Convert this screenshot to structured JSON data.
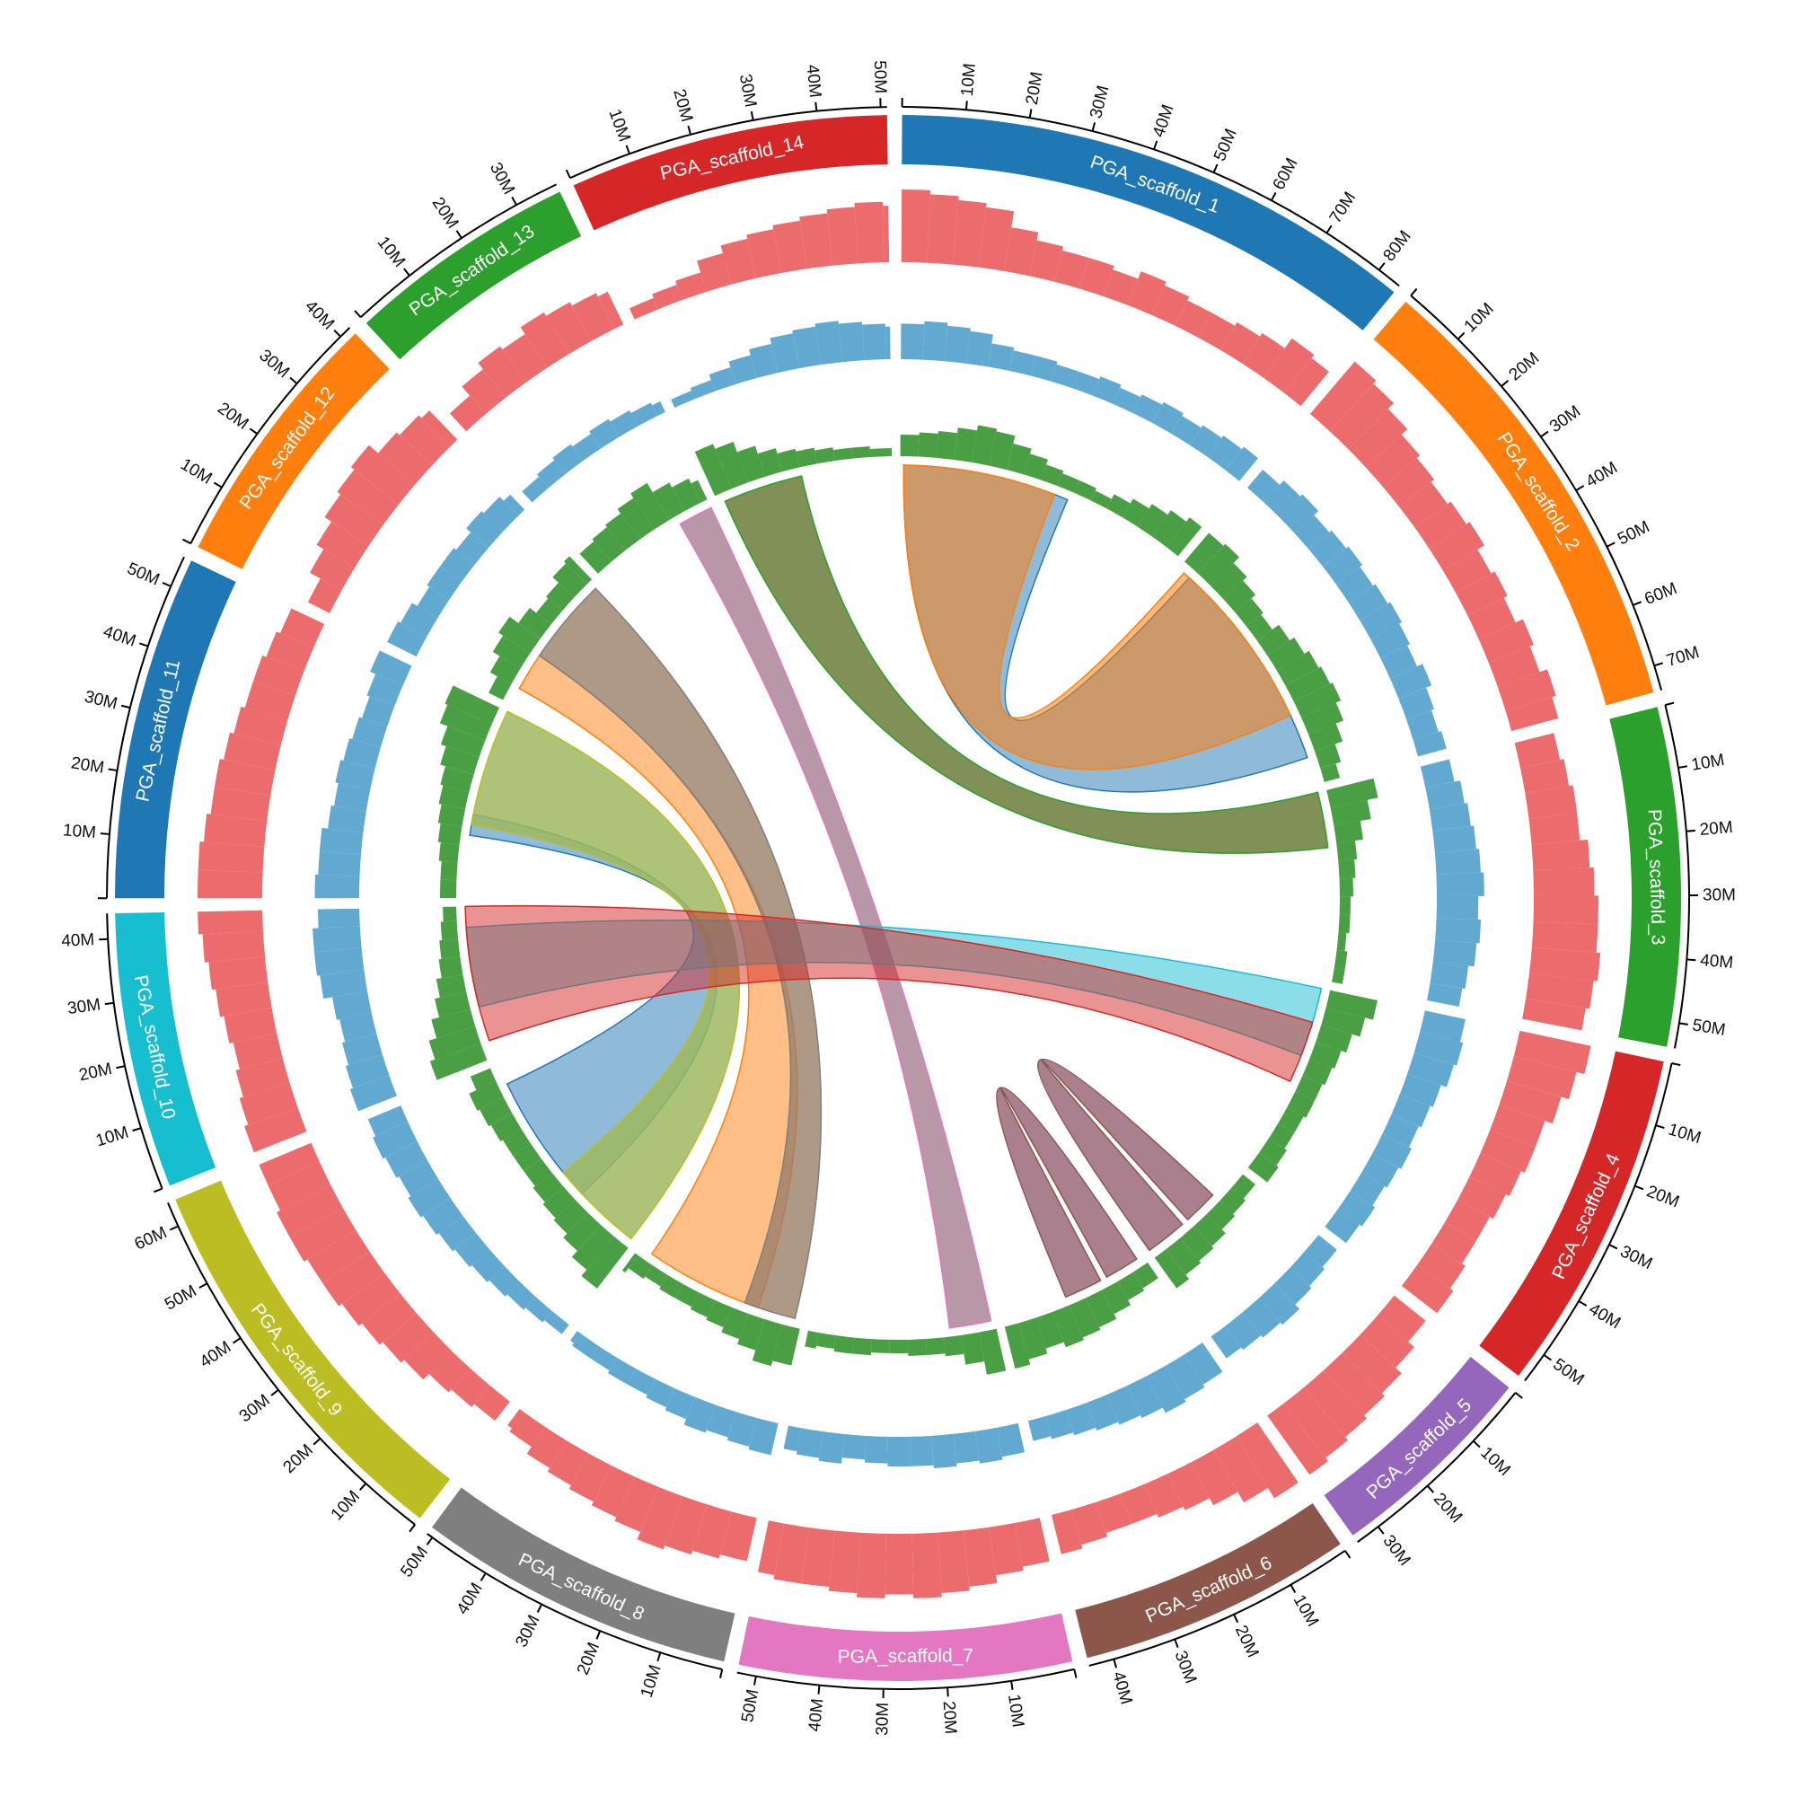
{
  "chart_data": {
    "type": "circos",
    "title": "",
    "unit": "M",
    "tick_step": 10,
    "tick_labels": [
      "10M",
      "20M",
      "30M",
      "40M",
      "50M",
      "60M",
      "70M",
      "80M"
    ],
    "scaffolds": [
      {
        "name": "PGA_scaffold_1",
        "length": 84,
        "color": "#1f77b4"
      },
      {
        "name": "PGA_scaffold_2",
        "length": 74,
        "color": "#ff7f0e"
      },
      {
        "name": "PGA_scaffold_3",
        "length": 54,
        "color": "#2ca02c"
      },
      {
        "name": "PGA_scaffold_4",
        "length": 55,
        "color": "#d62728"
      },
      {
        "name": "PGA_scaffold_5",
        "length": 34,
        "color": "#9467bd"
      },
      {
        "name": "PGA_scaffold_6",
        "length": 44,
        "color": "#8c564b"
      },
      {
        "name": "PGA_scaffold_7",
        "length": 53,
        "color": "#e377c2"
      },
      {
        "name": "PGA_scaffold_8",
        "length": 51,
        "color": "#7f7f7f"
      },
      {
        "name": "PGA_scaffold_9",
        "length": 64,
        "color": "#bcbd22"
      },
      {
        "name": "PGA_scaffold_10",
        "length": 44,
        "color": "#17becf"
      },
      {
        "name": "PGA_scaffold_11",
        "length": 55,
        "color": "#1f77b4"
      },
      {
        "name": "PGA_scaffold_12",
        "length": 42,
        "color": "#ff7f0e"
      },
      {
        "name": "PGA_scaffold_13",
        "length": 37,
        "color": "#2ca02c"
      },
      {
        "name": "PGA_scaffold_14",
        "length": 51,
        "color": "#d62728"
      }
    ],
    "tracks": [
      {
        "color": "#ec6b6d",
        "bin_size": 5,
        "values": [
          [
            0.9,
            0.85,
            0.8,
            0.75,
            0.55,
            0.45,
            0.4,
            0.4,
            0.35,
            0.45,
            0.4,
            0.35,
            0.35,
            0.4,
            0.45,
            0.6,
            0.55
          ],
          [
            0.85,
            0.8,
            0.7,
            0.6,
            0.55,
            0.5,
            0.55,
            0.6,
            0.5,
            0.55,
            0.5,
            0.6,
            0.55,
            0.65,
            0.6
          ],
          [
            0.5,
            0.55,
            0.6,
            0.6,
            0.7,
            0.75,
            0.8,
            0.8,
            0.85,
            0.8,
            0.75
          ],
          [
            0.9,
            0.8,
            0.7,
            0.6,
            0.6,
            0.55,
            0.5,
            0.45,
            0.45,
            0.5,
            0.55
          ],
          [
            0.5,
            0.6,
            0.7,
            0.75,
            0.8,
            0.85,
            0.9
          ],
          [
            0.9,
            0.75,
            0.6,
            0.5,
            0.45,
            0.4,
            0.4,
            0.45,
            0.5
          ],
          [
            0.55,
            0.6,
            0.7,
            0.75,
            0.8,
            0.75,
            0.8,
            0.75,
            0.7,
            0.7,
            0.65
          ],
          [
            0.55,
            0.6,
            0.65,
            0.7,
            0.6,
            0.55,
            0.5,
            0.45,
            0.4,
            0.3,
            0.25
          ],
          [
            0.3,
            0.35,
            0.4,
            0.5,
            0.55,
            0.6,
            0.65,
            0.7,
            0.7,
            0.75,
            0.75,
            0.7,
            0.7
          ],
          [
            0.7,
            0.65,
            0.6,
            0.55,
            0.6,
            0.65,
            0.7,
            0.75,
            0.8
          ],
          [
            0.8,
            0.8,
            0.75,
            0.7,
            0.7,
            0.65,
            0.6,
            0.55,
            0.55,
            0.5,
            0.45
          ],
          [
            0.3,
            0.45,
            0.55,
            0.65,
            0.7,
            0.75,
            0.6,
            0.55,
            0.5
          ],
          [
            0.3,
            0.45,
            0.55,
            0.5,
            0.6,
            0.55,
            0.5,
            0.45
          ],
          [
            0.15,
            0.2,
            0.25,
            0.4,
            0.5,
            0.55,
            0.6,
            0.65,
            0.7,
            0.75,
            0.7
          ]
        ]
      },
      {
        "color": "#62a9d1",
        "bin_size": 5,
        "values": [
          [
            0.6,
            0.65,
            0.6,
            0.55,
            0.4,
            0.35,
            0.35,
            0.3,
            0.3,
            0.35,
            0.3,
            0.35,
            0.4,
            0.35,
            0.4,
            0.45,
            0.5
          ],
          [
            0.4,
            0.5,
            0.55,
            0.45,
            0.5,
            0.55,
            0.5,
            0.55,
            0.6,
            0.55,
            0.5,
            0.6,
            0.5,
            0.45,
            0.5
          ],
          [
            0.5,
            0.6,
            0.65,
            0.7,
            0.75,
            0.8,
            0.7,
            0.75,
            0.7,
            0.6,
            0.55
          ],
          [
            0.7,
            0.75,
            0.7,
            0.6,
            0.55,
            0.5,
            0.55,
            0.5,
            0.45,
            0.5,
            0.45
          ],
          [
            0.4,
            0.45,
            0.5,
            0.6,
            0.55,
            0.5,
            0.45
          ],
          [
            0.6,
            0.65,
            0.7,
            0.6,
            0.55,
            0.5,
            0.45,
            0.4,
            0.35
          ],
          [
            0.5,
            0.55,
            0.5,
            0.55,
            0.5,
            0.5,
            0.45,
            0.4,
            0.5,
            0.45,
            0.4
          ],
          [
            0.55,
            0.5,
            0.45,
            0.5,
            0.4,
            0.35,
            0.3,
            0.3,
            0.25,
            0.25,
            0.2
          ],
          [
            0.2,
            0.25,
            0.3,
            0.35,
            0.4,
            0.45,
            0.5,
            0.55,
            0.6,
            0.55,
            0.6,
            0.65,
            0.6
          ],
          [
            0.7,
            0.65,
            0.6,
            0.55,
            0.6,
            0.75,
            0.8,
            0.8,
            0.7
          ],
          [
            0.75,
            0.7,
            0.7,
            0.6,
            0.55,
            0.6,
            0.55,
            0.5,
            0.45,
            0.5,
            0.6
          ],
          [
            0.55,
            0.5,
            0.4,
            0.45,
            0.45,
            0.4,
            0.5,
            0.45,
            0.35
          ],
          [
            0.25,
            0.3,
            0.35,
            0.3,
            0.35,
            0.3,
            0.25,
            0.2
          ],
          [
            0.15,
            0.2,
            0.3,
            0.4,
            0.5,
            0.6,
            0.65,
            0.7,
            0.65,
            0.6,
            0.55
          ]
        ]
      },
      {
        "color": "#4a9e44",
        "bin_size": 5,
        "values": [
          [
            0.4,
            0.45,
            0.5,
            0.6,
            0.7,
            0.65,
            0.5,
            0.4,
            0.3,
            0.25,
            0.25,
            0.2,
            0.3,
            0.4,
            0.5,
            0.6,
            0.7
          ],
          [
            0.7,
            0.75,
            0.6,
            0.5,
            0.4,
            0.35,
            0.5,
            0.6,
            0.7,
            0.75,
            0.8,
            0.7,
            0.55,
            0.4,
            0.3
          ],
          [
            0.9,
            0.7,
            0.5,
            0.35,
            0.3,
            0.25,
            0.2,
            0.2,
            0.15,
            0.2,
            0.2
          ],
          [
            0.9,
            0.75,
            0.6,
            0.5,
            0.45,
            0.4,
            0.4,
            0.35,
            0.35,
            0.4,
            0.45
          ],
          [
            0.3,
            0.35,
            0.4,
            0.5,
            0.55,
            0.6,
            0.7
          ],
          [
            0.35,
            0.4,
            0.5,
            0.6,
            0.65,
            0.7,
            0.6,
            0.7,
            0.8
          ],
          [
            0.8,
            0.55,
            0.35,
            0.3,
            0.3,
            0.25,
            0.25,
            0.3,
            0.3,
            0.25,
            0.3
          ],
          [
            0.7,
            0.8,
            0.6,
            0.5,
            0.4,
            0.35,
            0.3,
            0.3,
            0.25,
            0.3,
            0.4
          ],
          [
            0.95,
            0.8,
            0.65,
            0.55,
            0.5,
            0.45,
            0.4,
            0.4,
            0.4,
            0.45,
            0.5,
            0.55,
            0.4
          ],
          [
            1.0,
            0.9,
            0.75,
            0.6,
            0.5,
            0.4,
            0.35,
            0.3,
            0.25
          ],
          [
            0.3,
            0.3,
            0.35,
            0.4,
            0.45,
            0.5,
            0.55,
            0.65,
            0.75,
            0.9,
            0.95
          ],
          [
            0.3,
            0.45,
            0.6,
            0.7,
            0.5,
            0.35,
            0.4,
            0.55,
            0.6
          ],
          [
            0.5,
            0.55,
            0.6,
            0.7,
            0.8,
            0.6,
            0.5,
            0.4
          ],
          [
            0.9,
            0.8,
            0.6,
            0.45,
            0.35,
            0.3,
            0.25,
            0.2,
            0.2,
            0.15,
            0.15
          ]
        ]
      }
    ],
    "links": [
      {
        "source": {
          "scaffold": 1,
          "start": 1,
          "end": 49
        },
        "target": {
          "scaffold": 2,
          "start": 4,
          "end": 66
        },
        "fill": "#1f77b4",
        "stroke": "#1f77b4",
        "opacity": 0.5
      },
      {
        "source": {
          "scaffold": 1,
          "start": 1,
          "end": 45
        },
        "target": {
          "scaffold": 2,
          "start": 2,
          "end": 53
        },
        "fill": "#ff7f0e",
        "stroke": "#ff7f0e",
        "opacity": 0.55
      },
      {
        "source": {
          "scaffold": 14,
          "start": 2,
          "end": 25
        },
        "target": {
          "scaffold": 3,
          "start": 0,
          "end": 16
        },
        "fill": "#6b7d3a",
        "stroke": "#2ca02c",
        "opacity": 0.85
      },
      {
        "source": {
          "scaffold": 13,
          "start": 27,
          "end": 37
        },
        "target": {
          "scaffold": 7,
          "start": 1,
          "end": 13
        },
        "fill": "#b08c9c",
        "stroke": "#e377c2",
        "opacity": 0.9
      },
      {
        "source": {
          "scaffold": 12,
          "start": 5,
          "end": 16
        },
        "target": {
          "scaffold": 8,
          "start": 13,
          "end": 47
        },
        "fill": "#ff7f0e",
        "stroke": "#ff7f0e",
        "opacity": 0.5
      },
      {
        "source": {
          "scaffold": 12,
          "start": 16,
          "end": 41
        },
        "target": {
          "scaffold": 8,
          "start": 2,
          "end": 17
        },
        "fill": "#9a7e68",
        "stroke": "#7f7f7f",
        "opacity": 0.8
      },
      {
        "source": {
          "scaffold": 11,
          "start": 18,
          "end": 24
        },
        "target": {
          "scaffold": 9,
          "start": 20,
          "end": 58
        },
        "fill": "#1f77b4",
        "stroke": "#1f77b4",
        "opacity": 0.5
      },
      {
        "source": {
          "scaffold": 11,
          "start": 21,
          "end": 55
        },
        "target": {
          "scaffold": 9,
          "start": 1,
          "end": 28
        },
        "fill": "#9fb85f",
        "stroke": "#bcbd22",
        "opacity": 0.85
      },
      {
        "source": {
          "scaffold": 10,
          "start": 15,
          "end": 38
        },
        "target": {
          "scaffold": 4,
          "start": 0,
          "end": 20
        },
        "fill": "#17becf",
        "stroke": "#17becf",
        "opacity": 0.5
      },
      {
        "source": {
          "scaffold": 10,
          "start": 5,
          "end": 44
        },
        "target": {
          "scaffold": 4,
          "start": 10,
          "end": 28
        },
        "fill": "#d62728",
        "stroke": "#d62728",
        "opacity": 0.5
      },
      {
        "source": {
          "scaffold": 5,
          "start": 10,
          "end": 20
        },
        "target": {
          "scaffold": 5,
          "start": 22,
          "end": 34
        },
        "fill": "#9b6a7a",
        "stroke": "#8c564b",
        "opacity": 0.85
      },
      {
        "source": {
          "scaffold": 6,
          "start": 2,
          "end": 12
        },
        "target": {
          "scaffold": 6,
          "start": 14,
          "end": 25
        },
        "fill": "#9b6a7a",
        "stroke": "#8c564b",
        "opacity": 0.85
      }
    ]
  }
}
